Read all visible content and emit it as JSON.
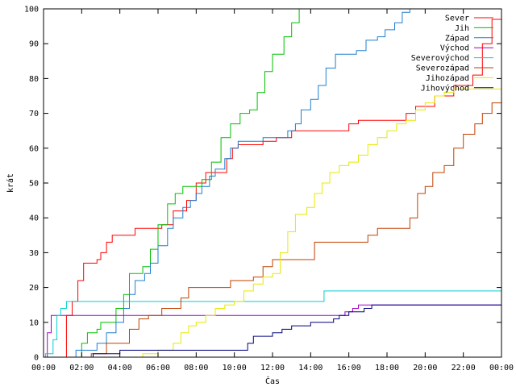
{
  "chart_data": {
    "type": "line",
    "title": "",
    "xlabel": "Čas",
    "ylabel": "krát",
    "xlim": [
      0,
      24
    ],
    "ylim": [
      0,
      100
    ],
    "x_ticks": [
      {
        "value": 0,
        "label": "00:00"
      },
      {
        "value": 2,
        "label": "02:00"
      },
      {
        "value": 4,
        "label": "04:00"
      },
      {
        "value": 6,
        "label": "06:00"
      },
      {
        "value": 8,
        "label": "08:00"
      },
      {
        "value": 10,
        "label": "10:00"
      },
      {
        "value": 12,
        "label": "12:00"
      },
      {
        "value": 14,
        "label": "14:00"
      },
      {
        "value": 16,
        "label": "16:00"
      },
      {
        "value": 18,
        "label": "18:00"
      },
      {
        "value": 20,
        "label": "20:00"
      },
      {
        "value": 22,
        "label": "22:00"
      },
      {
        "value": 24,
        "label": "00:00"
      }
    ],
    "y_ticks": [
      0,
      10,
      20,
      30,
      40,
      50,
      60,
      70,
      80,
      90,
      100
    ],
    "grid": false,
    "legend_position": "top-right",
    "step_lines": true,
    "series": [
      {
        "name": "Sever",
        "color": "#ff0000",
        "points": [
          [
            0,
            0
          ],
          [
            0.8,
            0
          ],
          [
            1.2,
            12
          ],
          [
            1.5,
            16
          ],
          [
            1.8,
            22
          ],
          [
            2.1,
            27
          ],
          [
            2.8,
            28
          ],
          [
            3.0,
            30
          ],
          [
            3.3,
            33
          ],
          [
            3.6,
            35
          ],
          [
            4.5,
            35
          ],
          [
            4.8,
            37
          ],
          [
            5.5,
            37
          ],
          [
            6.2,
            38
          ],
          [
            6.8,
            42
          ],
          [
            7.5,
            45
          ],
          [
            8.0,
            50
          ],
          [
            8.5,
            53
          ],
          [
            9.3,
            53
          ],
          [
            9.6,
            57
          ],
          [
            9.9,
            60
          ],
          [
            10.2,
            61
          ],
          [
            11.0,
            61
          ],
          [
            11.5,
            62
          ],
          [
            12.2,
            63
          ],
          [
            13.0,
            65
          ],
          [
            15.5,
            65
          ],
          [
            16.0,
            67
          ],
          [
            16.5,
            68
          ],
          [
            19.0,
            70
          ],
          [
            19.5,
            72
          ],
          [
            20.5,
            75
          ],
          [
            21.5,
            78
          ],
          [
            22.5,
            81
          ],
          [
            23.0,
            90
          ],
          [
            23.5,
            97
          ],
          [
            24,
            99
          ]
        ]
      },
      {
        "name": "Jih",
        "color": "#00c000",
        "points": [
          [
            0,
            0
          ],
          [
            1.8,
            0
          ],
          [
            2.0,
            4
          ],
          [
            2.3,
            7
          ],
          [
            2.8,
            8
          ],
          [
            3.0,
            10
          ],
          [
            3.8,
            14
          ],
          [
            4.2,
            18
          ],
          [
            4.5,
            24
          ],
          [
            5.2,
            26
          ],
          [
            5.6,
            31
          ],
          [
            6.0,
            38
          ],
          [
            6.5,
            44
          ],
          [
            6.9,
            47
          ],
          [
            7.3,
            49
          ],
          [
            8.3,
            51
          ],
          [
            8.8,
            56
          ],
          [
            9.3,
            63
          ],
          [
            9.8,
            67
          ],
          [
            10.3,
            70
          ],
          [
            10.8,
            71
          ],
          [
            11.2,
            76
          ],
          [
            11.6,
            82
          ],
          [
            12.0,
            87
          ],
          [
            12.6,
            92
          ],
          [
            13.0,
            96
          ],
          [
            13.4,
            100
          ]
        ]
      },
      {
        "name": "Západ",
        "color": "#1e7fcf",
        "points": [
          [
            0,
            0
          ],
          [
            1.6,
            0
          ],
          [
            1.7,
            2
          ],
          [
            2.8,
            4
          ],
          [
            3.3,
            7
          ],
          [
            3.8,
            10
          ],
          [
            4.2,
            14
          ],
          [
            4.5,
            18
          ],
          [
            4.8,
            22
          ],
          [
            5.3,
            24
          ],
          [
            5.6,
            27
          ],
          [
            6.0,
            32
          ],
          [
            6.5,
            37
          ],
          [
            6.8,
            40
          ],
          [
            7.3,
            43
          ],
          [
            7.7,
            45
          ],
          [
            8.0,
            47
          ],
          [
            8.3,
            49
          ],
          [
            8.7,
            52
          ],
          [
            9.0,
            54
          ],
          [
            9.5,
            57
          ],
          [
            9.8,
            60
          ],
          [
            10.2,
            62
          ],
          [
            11.0,
            62
          ],
          [
            11.5,
            63
          ],
          [
            12.8,
            65
          ],
          [
            13.2,
            67
          ],
          [
            13.5,
            71
          ],
          [
            14.0,
            74
          ],
          [
            14.4,
            78
          ],
          [
            14.8,
            83
          ],
          [
            15.3,
            87
          ],
          [
            16.0,
            87
          ],
          [
            16.4,
            88
          ],
          [
            16.9,
            91
          ],
          [
            17.5,
            92
          ],
          [
            17.9,
            94
          ],
          [
            18.4,
            96
          ],
          [
            18.8,
            99
          ],
          [
            19.2,
            100
          ]
        ]
      },
      {
        "name": "Východ",
        "color": "#a000c8",
        "points": [
          [
            0,
            0
          ],
          [
            0.2,
            7
          ],
          [
            0.4,
            12
          ],
          [
            2.0,
            12
          ],
          [
            15.5,
            12
          ],
          [
            15.8,
            13
          ],
          [
            16.2,
            14
          ],
          [
            16.5,
            15
          ],
          [
            24,
            15
          ]
        ]
      },
      {
        "name": "Severovýchod",
        "color": "#00d0d0",
        "points": [
          [
            0,
            0
          ],
          [
            0.1,
            1
          ],
          [
            0.5,
            5
          ],
          [
            0.7,
            12
          ],
          [
            0.9,
            14
          ],
          [
            1.2,
            16
          ],
          [
            14.5,
            16
          ],
          [
            14.7,
            19
          ],
          [
            24,
            19
          ]
        ]
      },
      {
        "name": "Severozápad",
        "color": "#c04000",
        "points": [
          [
            0,
            0
          ],
          [
            2.2,
            0
          ],
          [
            2.5,
            1
          ],
          [
            3.3,
            4
          ],
          [
            4.5,
            8
          ],
          [
            5.0,
            11
          ],
          [
            5.5,
            12
          ],
          [
            6.2,
            14
          ],
          [
            7.2,
            17
          ],
          [
            7.6,
            20
          ],
          [
            9.5,
            20
          ],
          [
            9.8,
            22
          ],
          [
            11.0,
            23
          ],
          [
            11.5,
            26
          ],
          [
            12.0,
            28
          ],
          [
            13.8,
            28
          ],
          [
            14.2,
            33
          ],
          [
            16.5,
            33
          ],
          [
            17.0,
            35
          ],
          [
            17.5,
            37
          ],
          [
            18.8,
            37
          ],
          [
            19.2,
            40
          ],
          [
            19.6,
            47
          ],
          [
            20.0,
            49
          ],
          [
            20.4,
            53
          ],
          [
            21.0,
            55
          ],
          [
            21.5,
            60
          ],
          [
            22.0,
            64
          ],
          [
            22.6,
            67
          ],
          [
            23.0,
            70
          ],
          [
            23.5,
            73
          ],
          [
            24,
            75
          ]
        ]
      },
      {
        "name": "Jihozápad",
        "color": "#e8e800",
        "points": [
          [
            0,
            0
          ],
          [
            5.0,
            0
          ],
          [
            5.2,
            1
          ],
          [
            6.0,
            2
          ],
          [
            6.8,
            4
          ],
          [
            7.2,
            7
          ],
          [
            7.6,
            9
          ],
          [
            8.0,
            10
          ],
          [
            8.5,
            12
          ],
          [
            9.0,
            14
          ],
          [
            9.5,
            15
          ],
          [
            10.0,
            16
          ],
          [
            10.5,
            19
          ],
          [
            11.0,
            21
          ],
          [
            11.5,
            23
          ],
          [
            12.0,
            24
          ],
          [
            12.4,
            30
          ],
          [
            12.8,
            36
          ],
          [
            13.2,
            41
          ],
          [
            13.8,
            43
          ],
          [
            14.2,
            47
          ],
          [
            14.6,
            50
          ],
          [
            15.0,
            53
          ],
          [
            15.5,
            55
          ],
          [
            16.0,
            56
          ],
          [
            16.5,
            58
          ],
          [
            17.0,
            61
          ],
          [
            17.5,
            63
          ],
          [
            18.0,
            65
          ],
          [
            18.5,
            67
          ],
          [
            19.0,
            68
          ],
          [
            19.5,
            71
          ],
          [
            20.0,
            73
          ],
          [
            20.5,
            75
          ],
          [
            21.0,
            76
          ],
          [
            21.5,
            77
          ],
          [
            22.0,
            77
          ],
          [
            23.0,
            77
          ],
          [
            24,
            78
          ]
        ]
      },
      {
        "name": "Jihovýchod",
        "color": "#000080",
        "points": [
          [
            0,
            0
          ],
          [
            2.5,
            0
          ],
          [
            2.6,
            1
          ],
          [
            3.5,
            1
          ],
          [
            4.0,
            2
          ],
          [
            10.5,
            2
          ],
          [
            10.7,
            4
          ],
          [
            11.0,
            6
          ],
          [
            12.0,
            7
          ],
          [
            12.5,
            8
          ],
          [
            13.0,
            9
          ],
          [
            14.0,
            10
          ],
          [
            15.2,
            11
          ],
          [
            15.5,
            12
          ],
          [
            16.0,
            13
          ],
          [
            16.8,
            14
          ],
          [
            17.2,
            15
          ],
          [
            24,
            15
          ]
        ]
      }
    ]
  }
}
